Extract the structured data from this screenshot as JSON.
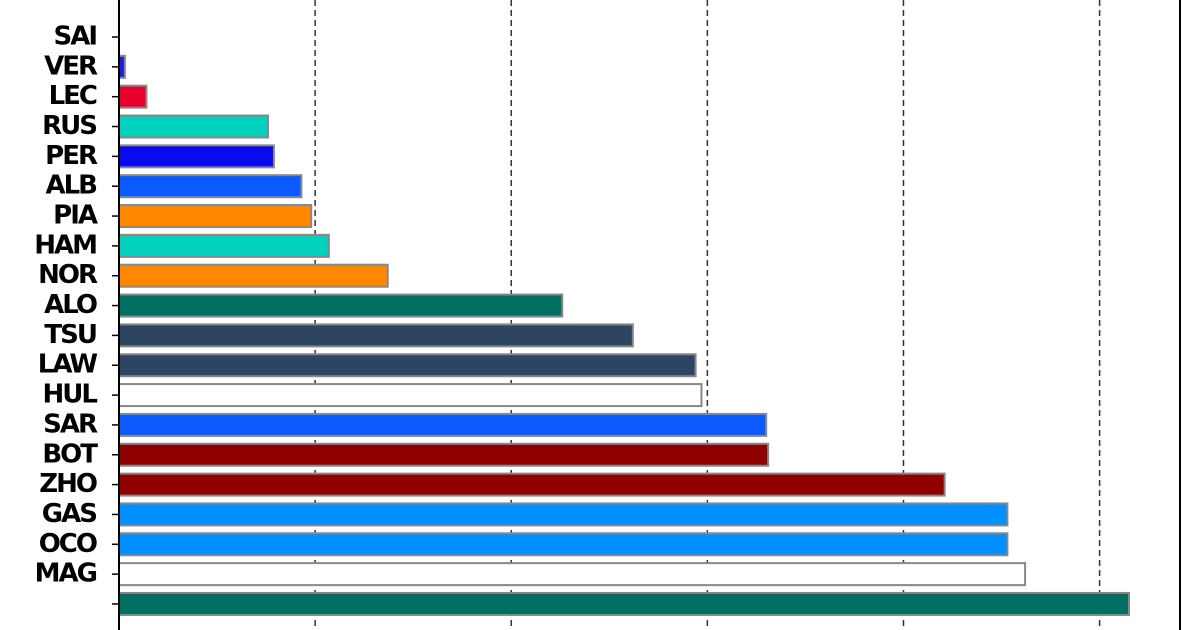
{
  "chart_data": {
    "type": "barh",
    "categories": [
      "SAI",
      "VER",
      "LEC",
      "RUS",
      "PER",
      "ALB",
      "PIA",
      "HAM",
      "NOR",
      "ALO",
      "TSU",
      "LAW",
      "HUL",
      "SAR",
      "BOT",
      "ZHO",
      "GAS",
      "OCO",
      "MAG",
      null
    ],
    "values": [
      0,
      0.03,
      0.14,
      0.76,
      0.79,
      0.93,
      0.98,
      1.07,
      1.37,
      2.26,
      2.62,
      2.94,
      2.97,
      3.3,
      3.31,
      4.21,
      4.53,
      4.53,
      4.62,
      5.15
    ],
    "colors": [
      "#ffffff",
      "#1e1edc",
      "#e8002d",
      "#00d2be",
      "#0a0aee",
      "#0a5aff",
      "#ff8700",
      "#00d2be",
      "#ff8700",
      "#006f62",
      "#2b4562",
      "#2b4562",
      "#ffffff",
      "#0a5aff",
      "#900000",
      "#900000",
      "#0090ff",
      "#0090ff",
      "#ffffff",
      "#006f62"
    ],
    "xlim": [
      0,
      5.41
    ],
    "xticks": [
      1,
      2,
      3,
      4,
      5
    ],
    "grid": true
  }
}
